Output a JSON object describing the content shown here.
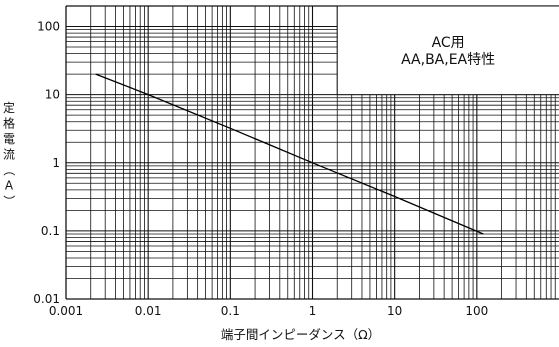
{
  "chart_data": {
    "type": "line",
    "xscale": "log",
    "yscale": "log",
    "xlim": [
      0.001,
      1000
    ],
    "ylim": [
      0.01,
      200
    ],
    "x_ticks": [
      0.001,
      0.01,
      0.1,
      1,
      10,
      100
    ],
    "x_tick_labels": [
      "0.001",
      "0.01",
      "0.1",
      "1",
      "10",
      "100"
    ],
    "y_ticks": [
      0.01,
      0.1,
      1,
      10,
      100
    ],
    "y_tick_labels": [
      "0.01",
      "0.1",
      "1",
      "10",
      "100"
    ],
    "xlabel": "端子間インピーダンス（Ω）",
    "ylabel": "定格電流（A）",
    "grid": true,
    "annotation": [
      "AC用",
      "AA,BA,EA特性"
    ],
    "series": [
      {
        "x": [
          0.0023,
          0.01,
          0.1,
          1,
          10,
          120
        ],
        "y": [
          20,
          10,
          3.2,
          1.0,
          0.32,
          0.09
        ]
      }
    ]
  }
}
